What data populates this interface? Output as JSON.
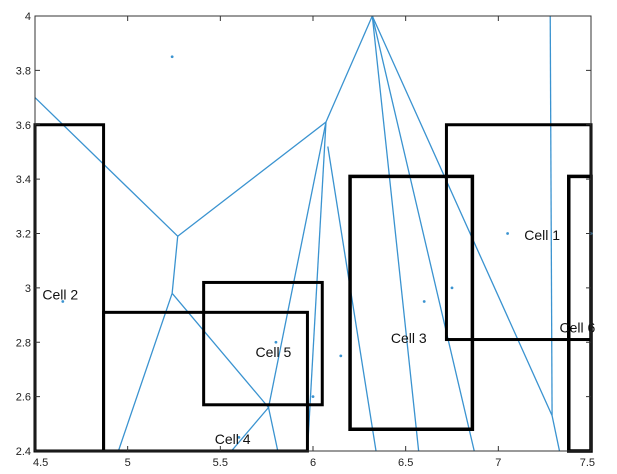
{
  "chart_data": {
    "type": "scatter",
    "title": "",
    "xlabel": "",
    "ylabel": "",
    "xlim": [
      4.5,
      7.5
    ],
    "ylim": [
      2.4,
      4.0
    ],
    "x_ticks": [
      4.5,
      5,
      5.5,
      6,
      6.5,
      7,
      7.5
    ],
    "x_tick_labels": [
      "4.5",
      "5",
      "5.5",
      "6",
      "6.5",
      "7",
      "7.5"
    ],
    "y_ticks": [
      2.4,
      2.6,
      2.8,
      3,
      3.2,
      3.4,
      3.6,
      3.8,
      4
    ],
    "y_tick_labels": [
      "2.4",
      "2.6",
      "2.8",
      "3",
      "3.2",
      "3.4",
      "3.6",
      "3.8",
      "4"
    ],
    "grid": false,
    "colors": {
      "voronoi": "#3a93d0",
      "points": "#3a93d0",
      "rectangles": "#000000",
      "axes": "#333333"
    },
    "points": [
      {
        "x": 5.24,
        "y": 3.85
      },
      {
        "x": 4.65,
        "y": 2.95
      },
      {
        "x": 5.8,
        "y": 2.8
      },
      {
        "x": 6.0,
        "y": 2.6
      },
      {
        "x": 6.15,
        "y": 2.75
      },
      {
        "x": 6.6,
        "y": 2.95
      },
      {
        "x": 6.75,
        "y": 3.0
      },
      {
        "x": 7.05,
        "y": 3.2
      },
      {
        "x": 7.5,
        "y": 3.2
      },
      {
        "x": 5.6,
        "y": 2.45
      }
    ],
    "voronoi_edges": [
      [
        [
          4.5,
          3.7
        ],
        [
          5.27,
          3.19
        ]
      ],
      [
        [
          5.27,
          3.19
        ],
        [
          6.07,
          3.61
        ]
      ],
      [
        [
          5.27,
          3.19
        ],
        [
          5.24,
          2.98
        ]
      ],
      [
        [
          5.24,
          2.98
        ],
        [
          5.76,
          2.56
        ]
      ],
      [
        [
          5.24,
          2.98
        ],
        [
          4.95,
          2.4
        ]
      ],
      [
        [
          5.76,
          2.56
        ],
        [
          6.07,
          3.61
        ]
      ],
      [
        [
          5.76,
          2.56
        ],
        [
          5.81,
          2.4
        ]
      ],
      [
        [
          5.76,
          2.56
        ],
        [
          5.56,
          2.4
        ]
      ],
      [
        [
          6.07,
          3.61
        ],
        [
          6.32,
          4.0
        ]
      ],
      [
        [
          6.07,
          3.61
        ],
        [
          5.97,
          2.4
        ]
      ],
      [
        [
          6.08,
          3.52
        ],
        [
          6.34,
          2.4
        ]
      ],
      [
        [
          6.32,
          4.0
        ],
        [
          6.87,
          2.4
        ]
      ],
      [
        [
          6.32,
          4.0
        ],
        [
          7.29,
          2.53
        ]
      ],
      [
        [
          6.32,
          4.0
        ],
        [
          6.57,
          2.4
        ]
      ],
      [
        [
          7.28,
          4.0
        ],
        [
          7.29,
          2.53
        ]
      ],
      [
        [
          7.29,
          2.53
        ],
        [
          7.33,
          2.4
        ]
      ]
    ],
    "rectangles": [
      {
        "x0": 4.5,
        "y0": 2.4,
        "x1": 4.87,
        "y1": 3.6,
        "lw": 3
      },
      {
        "x0": 4.87,
        "y0": 2.4,
        "x1": 5.97,
        "y1": 2.91,
        "lw": 3
      },
      {
        "x0": 5.41,
        "y0": 2.57,
        "x1": 6.05,
        "y1": 3.02,
        "lw": 3
      },
      {
        "x0": 6.2,
        "y0": 2.48,
        "x1": 6.86,
        "y1": 3.41,
        "lw": 3.5
      },
      {
        "x0": 6.72,
        "y0": 2.81,
        "x1": 7.5,
        "y1": 3.6,
        "lw": 3
      },
      {
        "x0": 7.38,
        "y0": 2.4,
        "x1": 7.5,
        "y1": 3.41,
        "lw": 3.5
      }
    ],
    "annotations": [
      {
        "text": "Cell 1",
        "x": 7.14,
        "y": 3.19,
        "anchor": "start"
      },
      {
        "text": "Cell 2",
        "x": 4.54,
        "y": 2.97,
        "anchor": "start"
      },
      {
        "text": "Cell 3",
        "x": 6.42,
        "y": 2.81,
        "anchor": "start"
      },
      {
        "text": "Cell 4",
        "x": 5.47,
        "y": 2.44,
        "anchor": "start"
      },
      {
        "text": "Cell 5",
        "x": 5.69,
        "y": 2.76,
        "anchor": "start"
      },
      {
        "text": "Cell 6",
        "x": 7.33,
        "y": 2.85,
        "anchor": "start"
      }
    ]
  }
}
